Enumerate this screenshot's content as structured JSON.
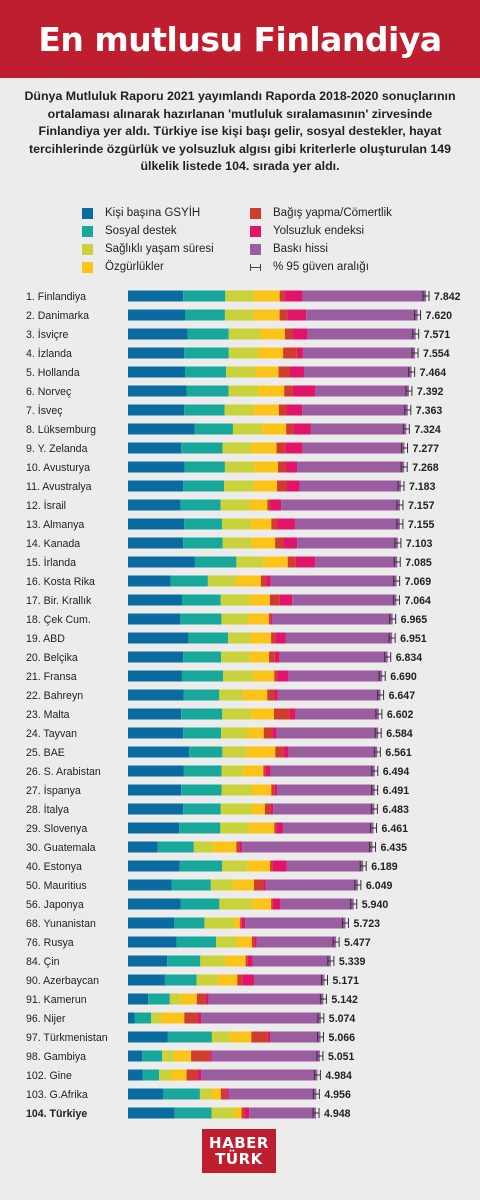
{
  "header": {
    "title": "En mutlusu Finlandiya"
  },
  "intro": {
    "text": "Dünya Mutluluk Raporu 2021 yayımlandı Raporda 2018-2020 sonuçlarının ortalaması alınarak hazırlanan 'mutluluk sıralamasının' zirvesinde Finlandiya yer aldı. Türkiye ise kişi başı gelir, sosyal destekler, hayat tercihlerinde özgürlük ve yolsuzluk algısı gibi kriterlerle oluşturulan 149 ülkelik listede 104. sırada yer aldı."
  },
  "legend": {
    "gdp": "Kişi başına GSYİH",
    "social": "Sosyal destek",
    "health": "Sağlıklı yaşam süresi",
    "freedom": "Özgürlükler",
    "generosity": "Bağış yapma/Cömertlik",
    "corruption": "Yolsuzluk endeksi",
    "dystopia": "Baskı hissi",
    "ci": "% 95 güven aralığı"
  },
  "colors": {
    "brand": "#be1e2d",
    "gdp": "#0a6ba1",
    "social": "#17a89b",
    "health": "#c9d23b",
    "freedom": "#fcc419",
    "generosity": "#d03c2e",
    "corruption": "#e1146a",
    "dystopia": "#9a5da0"
  },
  "logo": {
    "line1": "HABER",
    "line2": "TÜRK"
  },
  "chart_data": {
    "type": "bar",
    "stacked": true,
    "orientation": "horizontal",
    "title": "En mutlusu Finlandiya",
    "error_bars": true,
    "xlim": [
      0,
      7.842
    ],
    "series_order": [
      "gdp",
      "social",
      "health",
      "freedom",
      "generosity",
      "corruption",
      "dystopia"
    ],
    "rows": [
      {
        "label": "1. Finlandiya",
        "total": 7.842,
        "c": [
          1.45,
          1.11,
          0.74,
          0.69,
          0.12,
          0.48,
          3.25
        ]
      },
      {
        "label": "2. Danimarka",
        "total": 7.62,
        "c": [
          1.5,
          1.05,
          0.76,
          0.68,
          0.21,
          0.49,
          2.93
        ]
      },
      {
        "label": "3. İsviçre",
        "total": 7.571,
        "c": [
          1.57,
          1.08,
          0.82,
          0.66,
          0.2,
          0.4,
          2.84
        ]
      },
      {
        "label": "4. İzlanda",
        "total": 7.554,
        "c": [
          1.48,
          1.17,
          0.77,
          0.66,
          0.36,
          0.16,
          2.95
        ]
      },
      {
        "label": "5. Hollanda",
        "total": 7.464,
        "c": [
          1.5,
          1.08,
          0.76,
          0.62,
          0.3,
          0.37,
          2.83
        ]
      },
      {
        "label": "6. Norveç",
        "total": 7.392,
        "c": [
          1.54,
          1.11,
          0.78,
          0.68,
          0.21,
          0.61,
          2.46
        ]
      },
      {
        "label": "7. İsveç",
        "total": 7.363,
        "c": [
          1.48,
          1.06,
          0.78,
          0.65,
          0.2,
          0.41,
          2.78
        ]
      },
      {
        "label": "8. Lüksemburg",
        "total": 7.324,
        "c": [
          1.75,
          1.01,
          0.77,
          0.63,
          0.19,
          0.45,
          2.52
        ]
      },
      {
        "label": "9. Y. Zelanda",
        "total": 7.277,
        "c": [
          1.4,
          1.09,
          0.75,
          0.67,
          0.24,
          0.44,
          2.69
        ]
      },
      {
        "label": "10. Avusturya",
        "total": 7.268,
        "c": [
          1.49,
          1.06,
          0.77,
          0.63,
          0.21,
          0.29,
          2.82
        ]
      },
      {
        "label": "11. Avustralya",
        "total": 7.183,
        "c": [
          1.45,
          1.08,
          0.77,
          0.62,
          0.25,
          0.34,
          2.67
        ]
      },
      {
        "label": "12. İsrail",
        "total": 7.157,
        "c": [
          1.38,
          1.06,
          0.76,
          0.47,
          0.07,
          0.29,
          3.13
        ]
      },
      {
        "label": "13. Almanya",
        "total": 7.155,
        "c": [
          1.48,
          0.99,
          0.76,
          0.54,
          0.15,
          0.47,
          2.76
        ]
      },
      {
        "label": "14. Kanada",
        "total": 7.103,
        "c": [
          1.45,
          1.04,
          0.77,
          0.61,
          0.22,
          0.36,
          2.65
        ]
      },
      {
        "label": "15. İrlanda",
        "total": 7.085,
        "c": [
          1.76,
          1.09,
          0.71,
          0.64,
          0.21,
          0.51,
          2.16
        ]
      },
      {
        "label": "16. Kosta Rika",
        "total": 7.069,
        "c": [
          1.12,
          0.98,
          0.75,
          0.64,
          0.14,
          0.12,
          3.31
        ]
      },
      {
        "label": "17. Bir. Krallık",
        "total": 7.064,
        "c": [
          1.42,
          1.02,
          0.74,
          0.55,
          0.26,
          0.33,
          2.74
        ]
      },
      {
        "label": "18. Çek Cum.",
        "total": 6.965,
        "c": [
          1.37,
          1.09,
          0.7,
          0.55,
          0.05,
          0.05,
          3.16
        ]
      },
      {
        "label": "19. ABD",
        "total": 6.951,
        "c": [
          1.6,
          1.04,
          0.59,
          0.54,
          0.11,
          0.27,
          2.81
        ]
      },
      {
        "label": "20. Belçika",
        "total": 6.834,
        "c": [
          1.45,
          1.0,
          0.75,
          0.51,
          0.15,
          0.13,
          2.84
        ]
      },
      {
        "label": "21. Fransa",
        "total": 6.69,
        "c": [
          1.42,
          1.08,
          0.8,
          0.55,
          0.08,
          0.29,
          2.47
        ]
      },
      {
        "label": "22. Bahreyn",
        "total": 6.647,
        "c": [
          1.46,
          0.94,
          0.63,
          0.63,
          0.19,
          0.09,
          2.7
        ]
      },
      {
        "label": "23. Malta",
        "total": 6.602,
        "c": [
          1.4,
          1.08,
          0.76,
          0.6,
          0.42,
          0.15,
          2.19
        ]
      },
      {
        "label": "24. Tayvan",
        "total": 6.584,
        "c": [
          1.45,
          1.0,
          0.68,
          0.44,
          0.22,
          0.12,
          2.67
        ]
      },
      {
        "label": "25. BAE",
        "total": 6.561,
        "c": [
          1.61,
          0.87,
          0.63,
          0.76,
          0.21,
          0.14,
          2.33
        ]
      },
      {
        "label": "26. S. Arabistan",
        "total": 6.494,
        "c": [
          1.47,
          0.99,
          0.56,
          0.54,
          0.06,
          0.13,
          2.74
        ]
      },
      {
        "label": "27. İspanya",
        "total": 6.491,
        "c": [
          1.4,
          1.06,
          0.8,
          0.51,
          0.08,
          0.08,
          2.56
        ]
      },
      {
        "label": "28. İtalya",
        "total": 6.483,
        "c": [
          1.45,
          0.99,
          0.82,
          0.34,
          0.15,
          0.07,
          2.66
        ]
      },
      {
        "label": "29. Slovenya",
        "total": 6.461,
        "c": [
          1.35,
          1.08,
          0.74,
          0.68,
          0.06,
          0.17,
          2.38
        ]
      },
      {
        "label": "30. Guatemala",
        "total": 6.435,
        "c": [
          0.78,
          0.95,
          0.5,
          0.62,
          0.08,
          0.07,
          3.43
        ]
      },
      {
        "label": "40. Estonya",
        "total": 6.189,
        "c": [
          1.36,
          1.12,
          0.66,
          0.6,
          0.06,
          0.38,
          2.01
        ]
      },
      {
        "label": "50. Mauritius",
        "total": 6.049,
        "c": [
          1.14,
          1.03,
          0.57,
          0.56,
          0.25,
          0.06,
          2.41
        ]
      },
      {
        "label": "56. Japonya",
        "total": 5.94,
        "c": [
          1.38,
          1.02,
          0.88,
          0.48,
          0.04,
          0.21,
          1.92
        ]
      },
      {
        "label": "68. Yunanistan",
        "total": 5.723,
        "c": [
          1.22,
          0.79,
          0.77,
          0.17,
          0.03,
          0.1,
          2.64
        ]
      },
      {
        "label": "76. Rusya",
        "total": 5.477,
        "c": [
          1.28,
          1.03,
          0.54,
          0.4,
          0.07,
          0.06,
          2.08
        ]
      },
      {
        "label": "84. Çin",
        "total": 5.339,
        "c": [
          1.03,
          0.87,
          0.65,
          0.54,
          0.06,
          0.12,
          2.06
        ]
      },
      {
        "label": "90. Azerbaycan",
        "total": 5.171,
        "c": [
          0.97,
          0.83,
          0.56,
          0.51,
          0.13,
          0.31,
          1.85
        ]
      },
      {
        "label": "91. Kamerun",
        "total": 5.142,
        "c": [
          0.53,
          0.57,
          0.26,
          0.45,
          0.24,
          0.07,
          3.02
        ]
      },
      {
        "label": "96. Nijer",
        "total": 5.074,
        "c": [
          0.17,
          0.44,
          0.27,
          0.6,
          0.35,
          0.09,
          3.15
        ]
      },
      {
        "label": "97. Türkmenistan",
        "total": 5.066,
        "c": [
          1.05,
          1.16,
          0.47,
          0.57,
          0.43,
          0.07,
          1.32
        ]
      },
      {
        "label": "98. Gambiya",
        "total": 5.051,
        "c": [
          0.37,
          0.53,
          0.32,
          0.44,
          0.49,
          0.05,
          2.85
        ]
      },
      {
        "label": "102. Gine",
        "total": 4.984,
        "c": [
          0.39,
          0.43,
          0.31,
          0.41,
          0.28,
          0.1,
          3.06
        ]
      },
      {
        "label": "103. G.Afrika",
        "total": 4.956,
        "c": [
          0.92,
          0.97,
          0.32,
          0.23,
          0.14,
          0.06,
          2.31
        ]
      },
      {
        "label": "104. Türkiye",
        "total": 4.948,
        "c": [
          1.23,
          0.97,
          0.59,
          0.2,
          0.08,
          0.12,
          1.76
        ]
      }
    ]
  }
}
